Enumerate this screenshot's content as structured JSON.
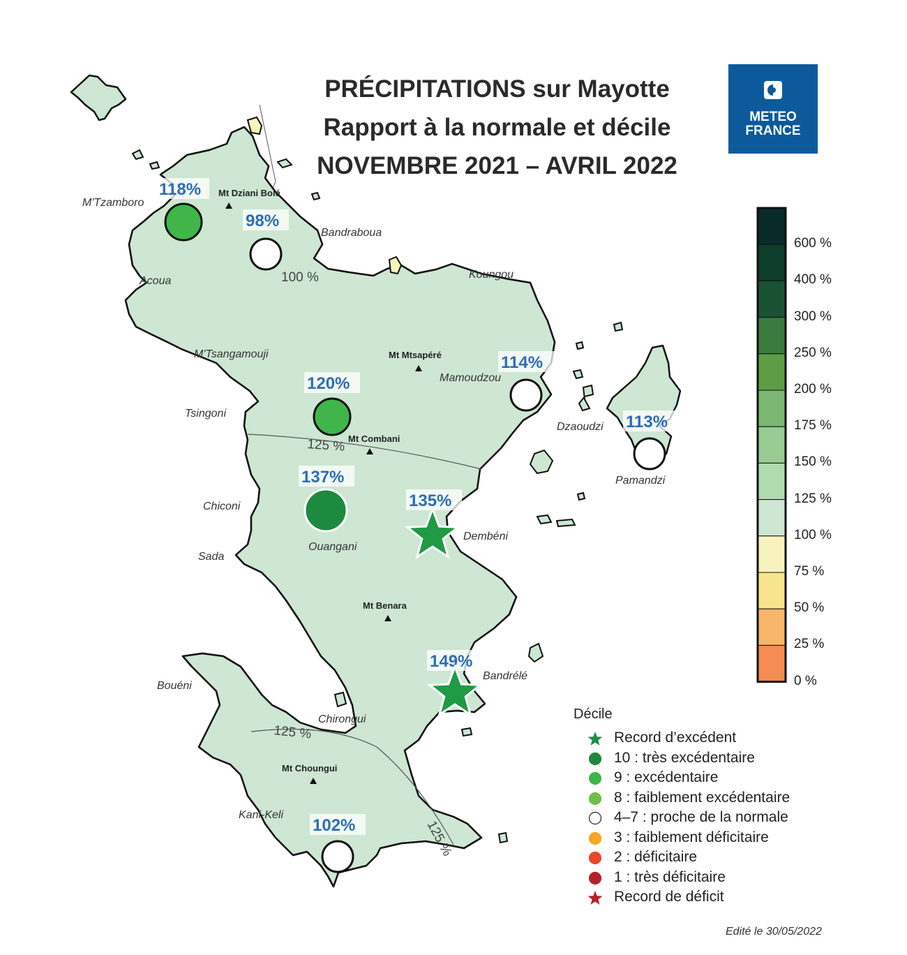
{
  "title": {
    "line1": "PRÉCIPITATIONS sur Mayotte",
    "line2": "Rapport à la normale et décile",
    "line3": "NOVEMBRE 2021 – AVRIL 2022"
  },
  "logo": {
    "line1": "METEO",
    "line2": "FRANCE",
    "color": "#0c5a9c"
  },
  "places": [
    {
      "name": "M'Tzamboro"
    },
    {
      "name": "Acoua"
    },
    {
      "name": "Bandraboua"
    },
    {
      "name": "Koungou"
    },
    {
      "name": "M'Tsangamouji"
    },
    {
      "name": "Tsingoni"
    },
    {
      "name": "Mamoudzou"
    },
    {
      "name": "Dzaoudzi"
    },
    {
      "name": "Pamandzi"
    },
    {
      "name": "Chiconi"
    },
    {
      "name": "Sada"
    },
    {
      "name": "Ouangani"
    },
    {
      "name": "Dembéni"
    },
    {
      "name": "Bandrélé"
    },
    {
      "name": "Bouéni"
    },
    {
      "name": "Chirongui"
    },
    {
      "name": "Kani-Keli"
    }
  ],
  "peaks": [
    {
      "name": "Mt Dziani Bolé"
    },
    {
      "name": "Mt Mtsapéré"
    },
    {
      "name": "Mt Combani"
    },
    {
      "name": "Mt Benara"
    },
    {
      "name": "Mt Choungui"
    }
  ],
  "isolines": [
    "100 %",
    "125 %",
    "125 %",
    "125 %"
  ],
  "stations": [
    {
      "value": "118%",
      "decile": "9 : excédentaire",
      "symbol": "circle",
      "color": "#3fb54a"
    },
    {
      "value": "98%",
      "decile": "4–7 : proche de la normale",
      "symbol": "circle",
      "color": "#ffffff"
    },
    {
      "value": "120%",
      "decile": "9 : excédentaire",
      "symbol": "circle",
      "color": "#3fb54a"
    },
    {
      "value": "114%",
      "decile": "4–7 : proche de la normale",
      "symbol": "circle",
      "color": "#ffffff"
    },
    {
      "value": "113%",
      "decile": "4–7 : proche de la normale",
      "symbol": "circle",
      "color": "#ffffff"
    },
    {
      "value": "137%",
      "decile": "10 : très excédentaire",
      "symbol": "circle",
      "color": "#1d8a3f"
    },
    {
      "value": "135%",
      "decile": "Record d’excédent",
      "symbol": "star",
      "color": "#1f9a45"
    },
    {
      "value": "149%",
      "decile": "Record d’excédent",
      "symbol": "star",
      "color": "#1f9a45"
    },
    {
      "value": "102%",
      "decile": "4–7 : proche de la normale",
      "symbol": "circle",
      "color": "#ffffff"
    }
  ],
  "colorscale": {
    "labels": [
      "600 %",
      "400 %",
      "300 %",
      "250 %",
      "200 %",
      "175 %",
      "150 %",
      "125 %",
      "100 %",
      "75 %",
      "50 %",
      "25 %",
      "0 %"
    ],
    "colors": [
      "#082b2a",
      "#0e3d2c",
      "#185233",
      "#3a7b3e",
      "#5f9d45",
      "#7bb873",
      "#98cc93",
      "#b0dbb1",
      "#cde7d2",
      "#f6f3bd",
      "#f8e48c",
      "#f8b66a",
      "#f48c54"
    ]
  },
  "legend": {
    "title": "Décile",
    "items": [
      {
        "label": "Record d’excédent",
        "symbol": "star",
        "color": "#1f8f45"
      },
      {
        "label": "10 : très excédentaire",
        "symbol": "circle",
        "color": "#1d8a3f"
      },
      {
        "label": "9 : excédentaire",
        "symbol": "circle",
        "color": "#3fb54a"
      },
      {
        "label": "8 : faiblement excédentaire",
        "symbol": "circle",
        "color": "#6fbe4a"
      },
      {
        "label": "4–7 : proche de la normale",
        "symbol": "circle",
        "color": "#ffffff"
      },
      {
        "label": "3 : faiblement déficitaire",
        "symbol": "circle",
        "color": "#f6a623"
      },
      {
        "label": "2 : déficitaire",
        "symbol": "circle",
        "color": "#e8472e"
      },
      {
        "label": "1 : très déficitaire",
        "symbol": "circle",
        "color": "#b5202a"
      },
      {
        "label": "Record de déficit",
        "symbol": "star",
        "color": "#b5202a"
      }
    ]
  },
  "edit_date": "Edité le 30/05/2022",
  "map_colors": {
    "zone_100_125": "#cde7d2",
    "zone_125_150": "#b0dbb1",
    "zone_75_100": "#f6f3bd",
    "outline": "#111111",
    "value_text": "#2e6db4"
  }
}
